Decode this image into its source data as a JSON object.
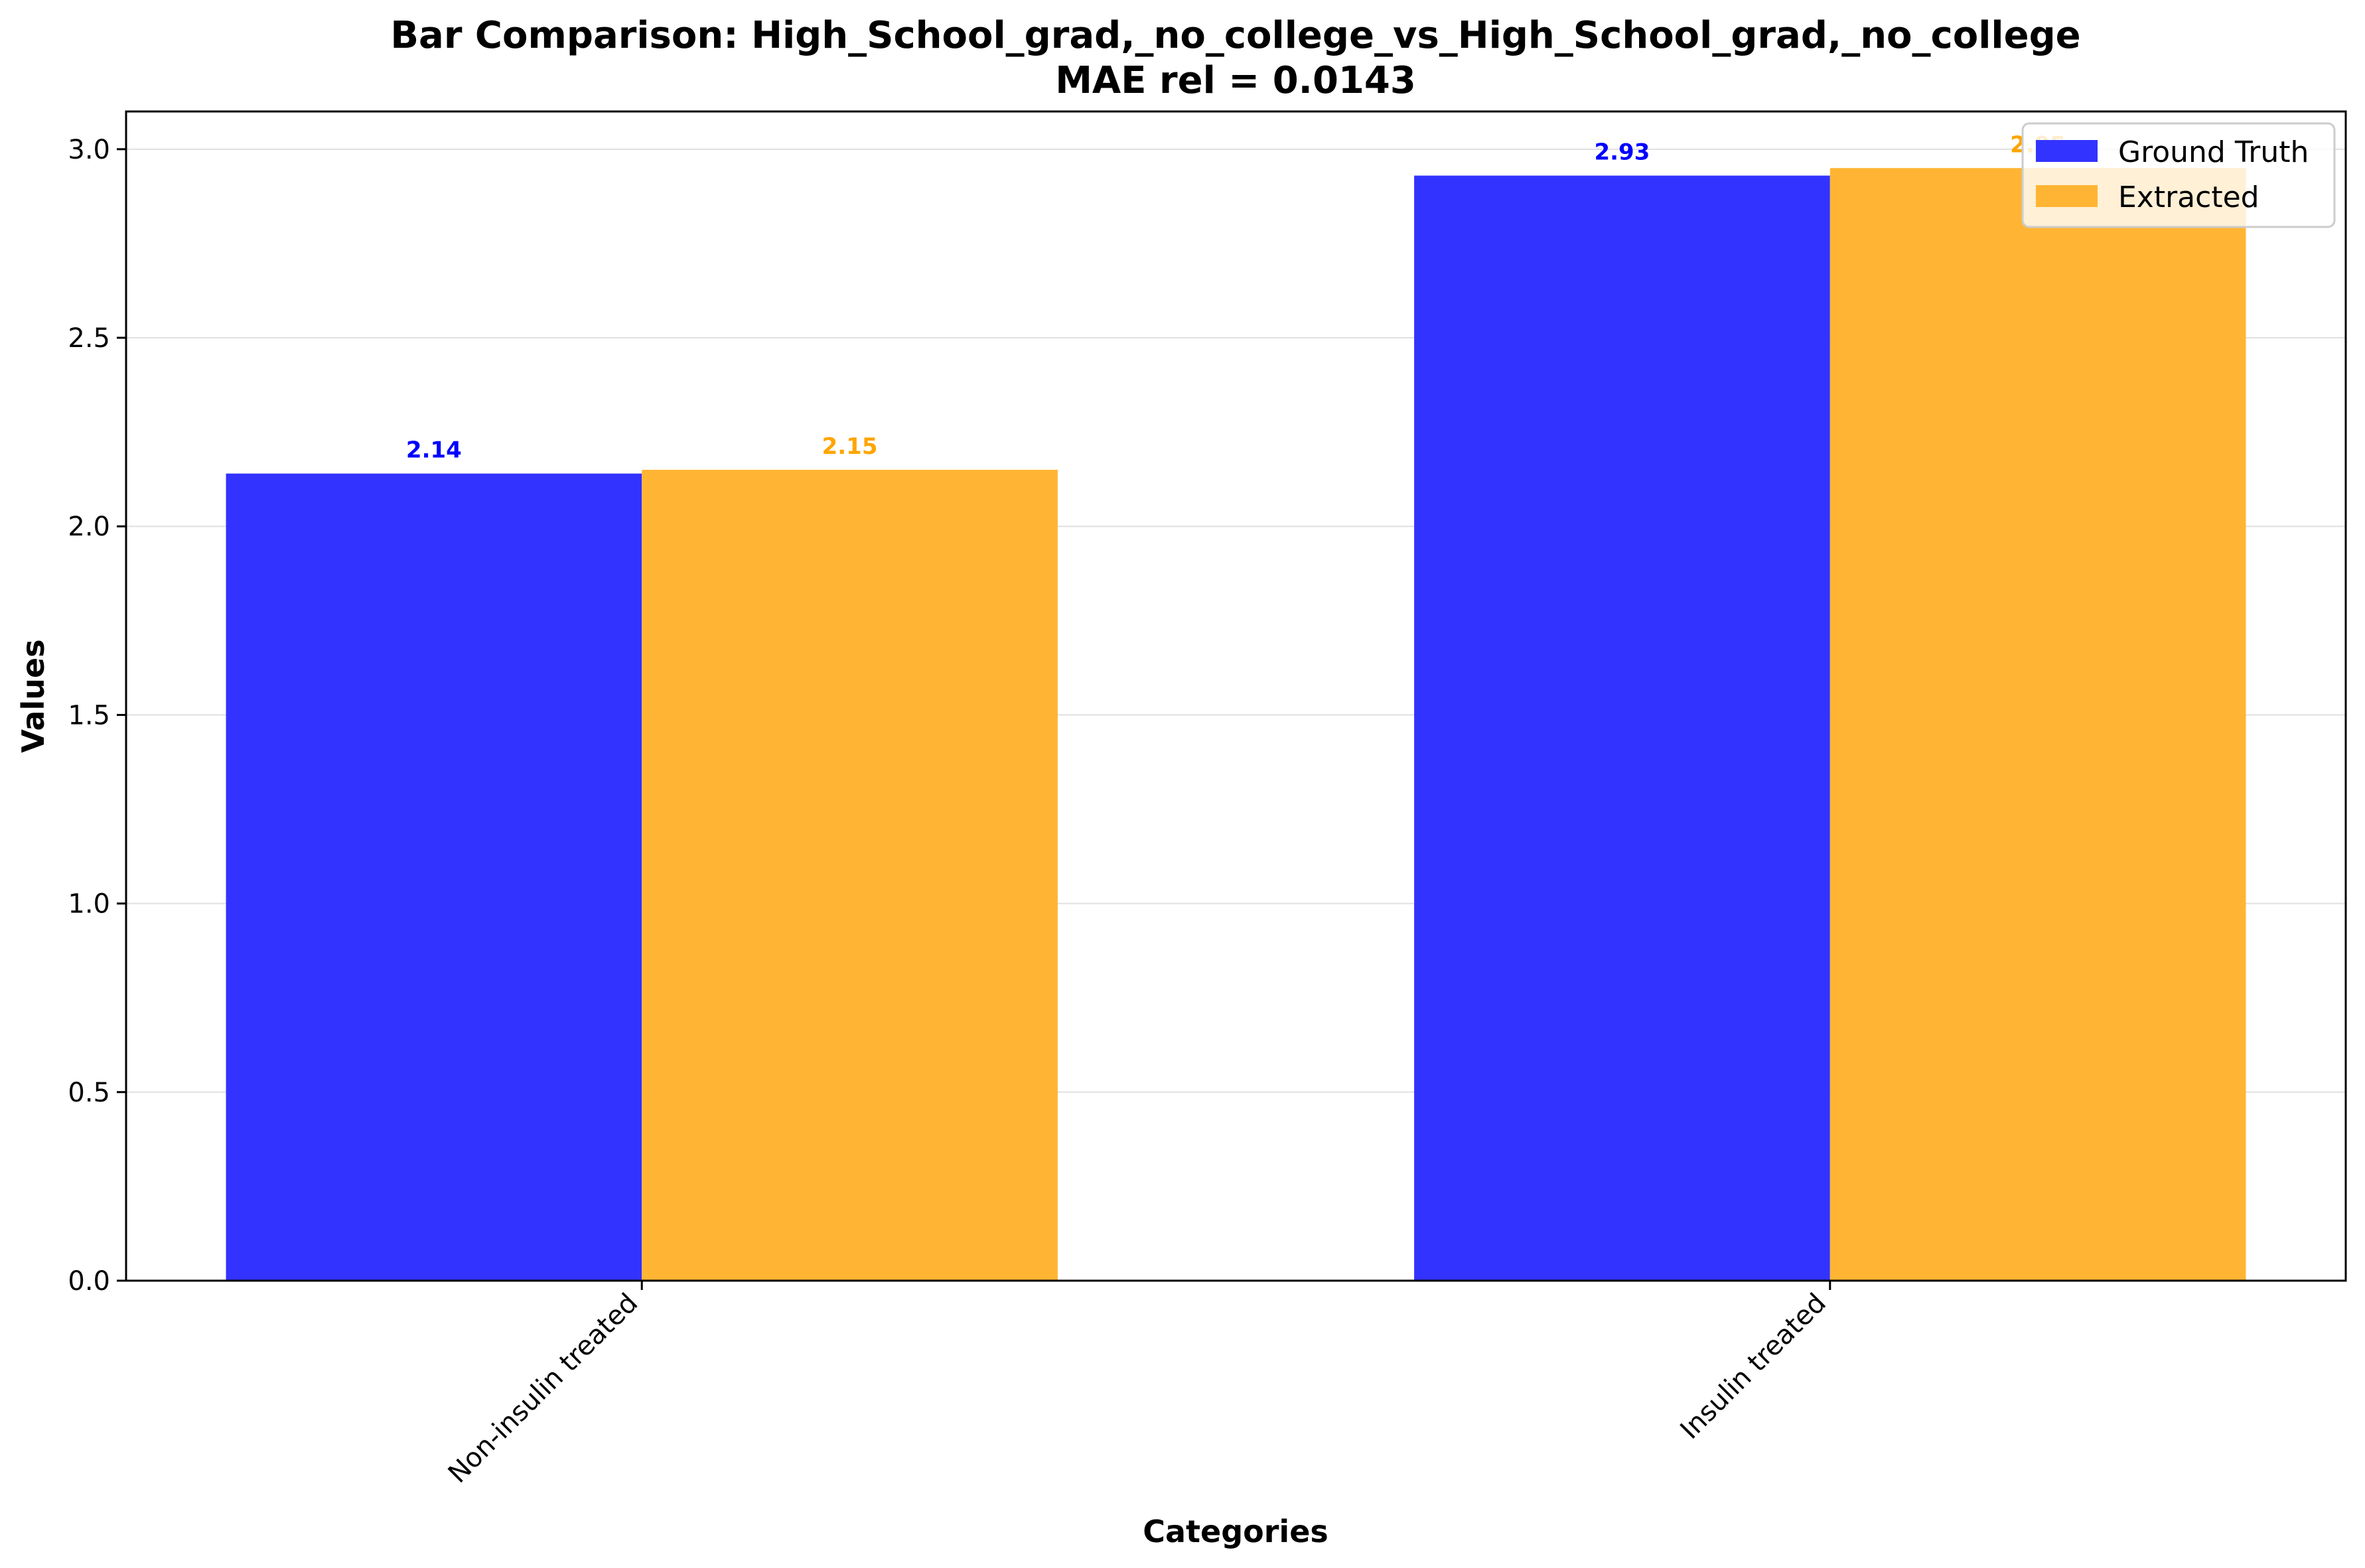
{
  "chart_data": {
    "type": "bar",
    "title": "Bar Comparison: High_School_grad,_no_college_vs_High_School_grad,_no_college",
    "subtitle": "MAE rel = 0.0143",
    "xlabel": "Categories",
    "ylabel": "Values",
    "categories": [
      "Non-insulin treated",
      "Insulin treated"
    ],
    "series": [
      {
        "name": "Ground Truth",
        "color": "#3333ff",
        "label_color": "#0000ff",
        "values": [
          2.14,
          2.93
        ],
        "labels": [
          "2.14",
          "2.93"
        ]
      },
      {
        "name": "Extracted",
        "color": "#ffb533",
        "label_color": "#ffa500",
        "values": [
          2.15,
          2.95
        ],
        "labels": [
          "2.15",
          "2.95"
        ]
      }
    ],
    "ylim": [
      0,
      3.1
    ],
    "yticks": [
      0.0,
      0.5,
      1.0,
      1.5,
      2.0,
      2.5,
      3.0
    ],
    "ytick_labels": [
      "0.0",
      "0.5",
      "1.0",
      "1.5",
      "2.0",
      "2.5",
      "3.0"
    ],
    "grid": "horizontal",
    "legend_position": "top-right"
  }
}
